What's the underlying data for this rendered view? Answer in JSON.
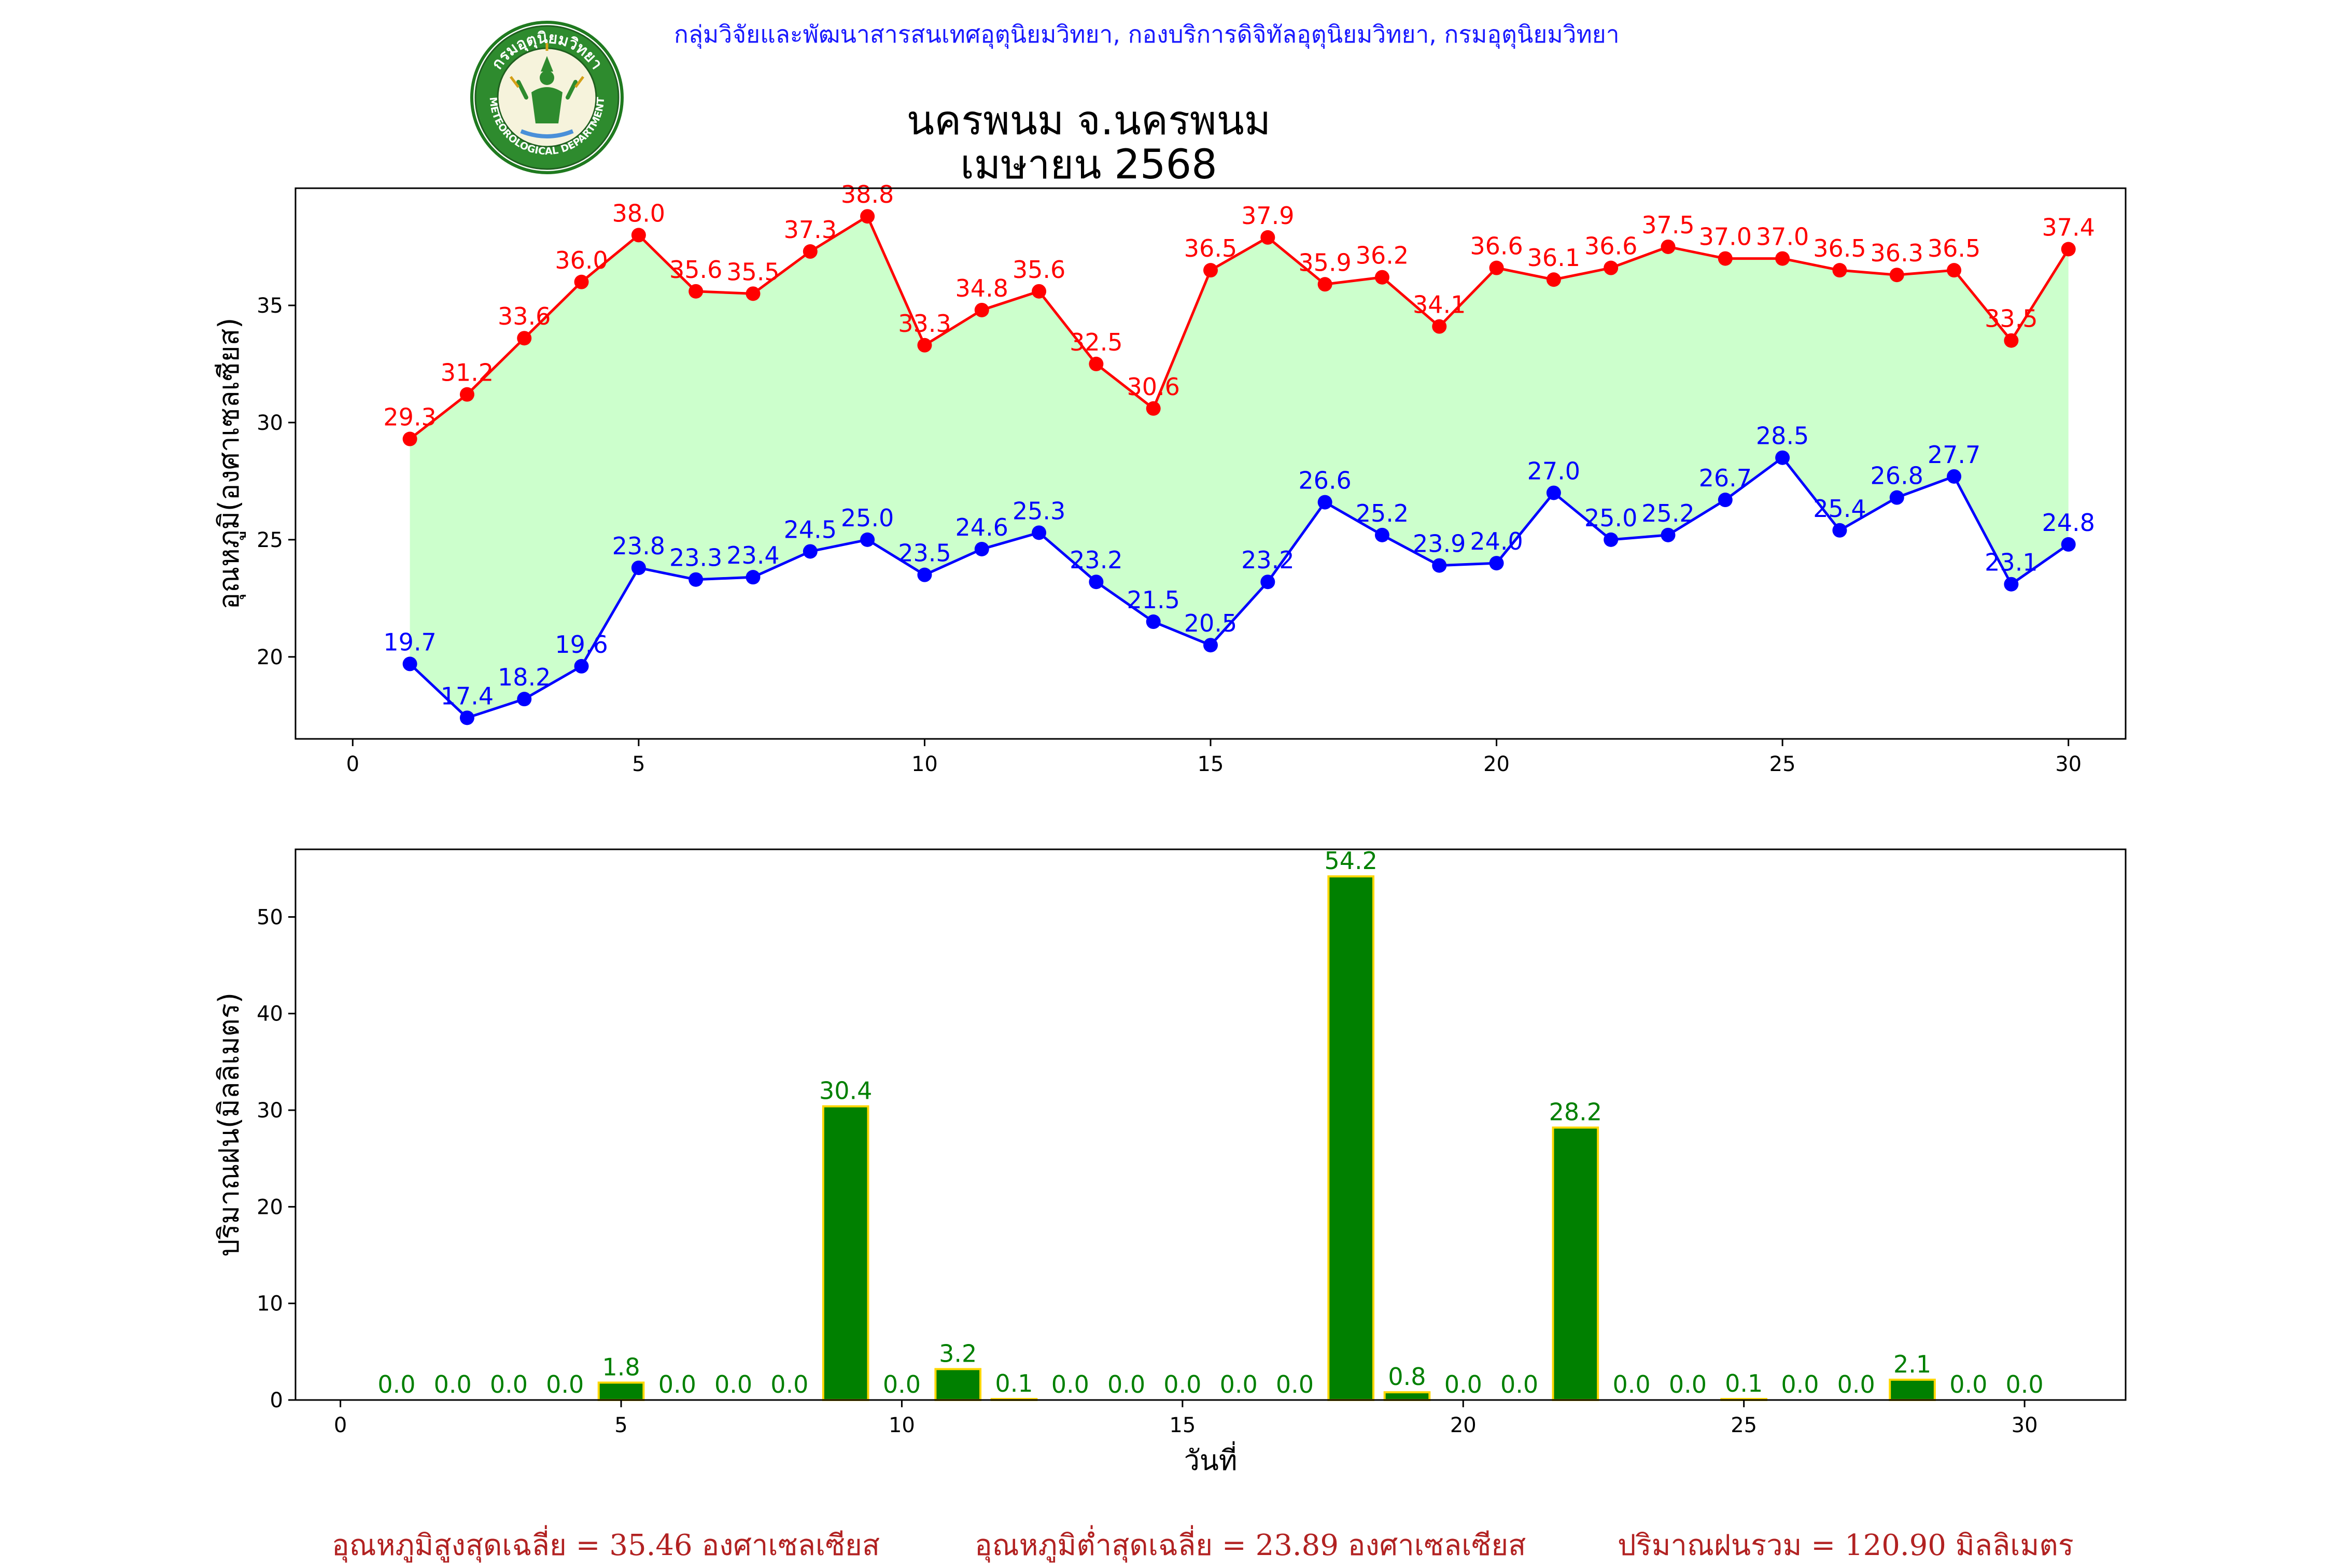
{
  "header": {
    "agency": "กลุ่มวิจัยและพัฒนาสารสนเทศอุตุนิยมวิทยา, กองบริการดิจิทัลอุตุนิยมวิทยา, กรมอุตุนิยมวิทยา",
    "title_line1": "นครพนม จ.นครพนม",
    "title_line2": "เมษายน 2568",
    "logo_text_top": "กรมอุตุนิยมวิทยา",
    "logo_text_bottom": "METEOROLOGICAL DEPARTMENT"
  },
  "footer": {
    "avg_max": "อุณหภูมิสูงสุดเฉลี่ย = 35.46 องศาเซลเซียส",
    "avg_min": "อุณหภูมิต่ำสุดเฉลี่ย = 23.89 องศาเซลเซียส",
    "total_rain": "ปริมาณฝนรวม = 120.90 มิลลิเมตร"
  },
  "colors": {
    "max_line": "#ff0000",
    "min_line": "#0000ff",
    "fill": "#ccffcc",
    "bar_fill": "#008000",
    "bar_edge": "#ffd700",
    "bar_label": "#008000"
  },
  "chart_data": [
    {
      "type": "line",
      "title": "นครพนม จ.นครพนม เมษายน 2568",
      "xlabel": "",
      "ylabel": "อุณหภูมิ(องศาเซลเซียส)",
      "xlim": [
        -1,
        31
      ],
      "ylim": [
        16.5,
        40.0
      ],
      "xticks": [
        0,
        5,
        10,
        15,
        20,
        25,
        30
      ],
      "yticks": [
        20,
        25,
        30,
        35
      ],
      "grid": false,
      "x": [
        1,
        2,
        3,
        4,
        5,
        6,
        7,
        8,
        9,
        10,
        11,
        12,
        13,
        14,
        15,
        16,
        17,
        18,
        19,
        20,
        21,
        22,
        23,
        24,
        25,
        26,
        27,
        28,
        29,
        30
      ],
      "series": [
        {
          "key": "max",
          "values": [
            29.3,
            31.2,
            33.6,
            36.0,
            38.0,
            35.6,
            35.5,
            37.3,
            38.8,
            33.3,
            34.8,
            35.6,
            32.5,
            30.6,
            36.5,
            37.9,
            35.9,
            36.2,
            34.1,
            36.6,
            36.1,
            36.6,
            37.5,
            37.0,
            37.0,
            36.5,
            36.3,
            36.5,
            33.5,
            37.4
          ],
          "labels": [
            "29.3",
            "31.2",
            "33.6",
            "36.0",
            "38.0",
            "35.6",
            "35.5",
            "37.3",
            "38.8",
            "33.3",
            "34.8",
            "35.6",
            "32.5",
            "30.6",
            "36.5",
            "37.9",
            "35.9",
            "36.2",
            "34.1",
            "36.6",
            "36.1",
            "36.6",
            "37.5",
            "37.0",
            "37.0",
            "36.5",
            "36.3",
            "36.5",
            "33.5",
            "37.4"
          ]
        },
        {
          "key": "min",
          "values": [
            19.7,
            17.4,
            18.2,
            19.6,
            23.8,
            23.3,
            23.4,
            24.5,
            25.0,
            23.5,
            24.6,
            25.3,
            23.2,
            21.5,
            20.5,
            23.2,
            26.6,
            25.2,
            23.9,
            24.0,
            27.0,
            25.0,
            25.2,
            26.7,
            28.5,
            25.4,
            26.8,
            27.7,
            23.1,
            24.8
          ],
          "labels": [
            "19.7",
            "17.4",
            "18.2",
            "19.6",
            "23.8",
            "23.3",
            "23.4",
            "24.5",
            "25.0",
            "23.5",
            "24.6",
            "25.3",
            "23.2",
            "21.5",
            "20.5",
            "23.2",
            "26.6",
            "25.2",
            "23.9",
            "24.0",
            "27.0",
            "25.0",
            "25.2",
            "26.7",
            "28.5",
            "25.4",
            "26.8",
            "27.7",
            "23.1",
            "24.8"
          ]
        }
      ]
    },
    {
      "type": "bar",
      "xlabel": "วันที่",
      "ylabel": "ปริมาณฝน(มิลลิเมตร)",
      "xlim": [
        -0.8,
        31.8
      ],
      "ylim": [
        0,
        57
      ],
      "xticks": [
        0,
        5,
        10,
        15,
        20,
        25,
        30
      ],
      "yticks": [
        0,
        10,
        20,
        30,
        40,
        50
      ],
      "grid": false,
      "x": [
        1,
        2,
        3,
        4,
        5,
        6,
        7,
        8,
        9,
        10,
        11,
        12,
        13,
        14,
        15,
        16,
        17,
        18,
        19,
        20,
        21,
        22,
        23,
        24,
        25,
        26,
        27,
        28,
        29,
        30
      ],
      "values": [
        0.0,
        0.0,
        0.0,
        0.0,
        1.8,
        0.0,
        0.0,
        0.0,
        30.4,
        0.0,
        3.2,
        0.1,
        0.0,
        0.0,
        0.0,
        0.0,
        0.0,
        54.2,
        0.8,
        0.0,
        0.0,
        28.2,
        0.0,
        0.0,
        0.1,
        0.0,
        0.0,
        2.1,
        0.0,
        0.0
      ],
      "labels": [
        "0.0",
        "0.0",
        "0.0",
        "0.0",
        "1.8",
        "0.0",
        "0.0",
        "0.0",
        "30.4",
        "0.0",
        "3.2",
        "0.1",
        "0.0",
        "0.0",
        "0.0",
        "0.0",
        "0.0",
        "54.2",
        "0.8",
        "0.0",
        "0.0",
        "28.2",
        "0.0",
        "0.0",
        "0.1",
        "0.0",
        "0.0",
        "2.1",
        "0.0",
        "0.0"
      ]
    }
  ]
}
